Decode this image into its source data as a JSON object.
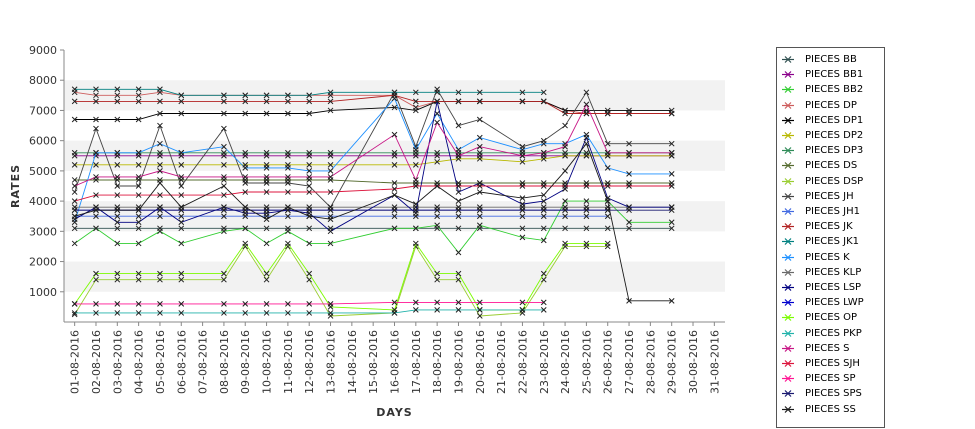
{
  "chart_data": {
    "type": "line",
    "xlabel": "DAYS",
    "ylabel": "RATES",
    "ylim": [
      0,
      9000
    ],
    "yticks": [
      1000,
      2000,
      3000,
      4000,
      5000,
      6000,
      7000,
      8000,
      9000
    ],
    "grid": "alternating horizontal bands",
    "legend_position": "right",
    "categories": [
      "01-08-2016",
      "02-08-2016",
      "03-08-2016",
      "04-08-2016",
      "05-08-2016",
      "06-08-2016",
      "07-08-2016",
      "08-08-2016",
      "09-08-2016",
      "10-08-2016",
      "11-08-2016",
      "12-08-2016",
      "13-08-2016",
      "14-08-2016",
      "15-08-2016",
      "16-08-2016",
      "17-08-2016",
      "18-08-2016",
      "19-08-2016",
      "20-08-2016",
      "21-08-2016",
      "22-08-2016",
      "23-08-2016",
      "24-08-2016",
      "25-08-2016",
      "26-08-2016",
      "27-08-2016",
      "28-08-2016",
      "29-08-2016",
      "30-08-2016",
      "31-08-2016"
    ],
    "series": [
      {
        "name": "PIECES BB",
        "color": "#2f4f4f",
        "values": [
          3100,
          3100,
          3100,
          3100,
          3100,
          3100,
          null,
          3100,
          3100,
          3100,
          3100,
          3100,
          3100,
          null,
          null,
          3100,
          3100,
          3100,
          3100,
          3100,
          null,
          3100,
          3100,
          3100,
          3100,
          3100,
          3100,
          null,
          3100,
          null,
          null
        ]
      },
      {
        "name": "PIECES BB1",
        "color": "#8b008b",
        "values": [
          5500,
          5500,
          5500,
          5500,
          5500,
          5500,
          null,
          5500,
          5500,
          5500,
          5500,
          5500,
          5500,
          null,
          null,
          5500,
          5500,
          5500,
          5500,
          5500,
          null,
          5500,
          5500,
          5500,
          5500,
          5500,
          5500,
          null,
          5500,
          null,
          null
        ]
      },
      {
        "name": "PIECES BB2",
        "color": "#32cd32",
        "values": [
          2600,
          3100,
          2600,
          2600,
          3000,
          2600,
          null,
          3000,
          3100,
          2600,
          3000,
          2600,
          2600,
          null,
          null,
          3100,
          3100,
          3200,
          2300,
          3200,
          null,
          2800,
          2700,
          4000,
          4000,
          4000,
          3300,
          null,
          3300,
          null,
          null
        ]
      },
      {
        "name": "PIECES DP",
        "color": "#cd5c5c",
        "values": [
          7600,
          7500,
          7500,
          7500,
          7600,
          7500,
          null,
          7500,
          7500,
          7500,
          7500,
          7500,
          7500,
          null,
          null,
          7500,
          7100,
          7300,
          7300,
          7300,
          null,
          7300,
          7300,
          7000,
          6900,
          6900,
          6900,
          null,
          6900,
          null,
          null
        ]
      },
      {
        "name": "PIECES DP1",
        "color": "#000000",
        "values": [
          6700,
          6700,
          6700,
          6700,
          6900,
          6900,
          null,
          6900,
          6900,
          6900,
          6900,
          6900,
          7000,
          null,
          null,
          7100,
          7000,
          7300,
          7300,
          7300,
          null,
          7300,
          7300,
          7000,
          7000,
          7000,
          7000,
          null,
          7000,
          null,
          null
        ]
      },
      {
        "name": "PIECES DP2",
        "color": "#b8b800",
        "values": [
          5200,
          5200,
          5200,
          5200,
          5200,
          5200,
          null,
          5200,
          5200,
          5200,
          5200,
          5200,
          5200,
          null,
          null,
          5200,
          5200,
          5300,
          5400,
          5400,
          null,
          5300,
          5400,
          5500,
          5500,
          5500,
          5500,
          null,
          5500,
          null,
          null
        ]
      },
      {
        "name": "PIECES DP3",
        "color": "#2e8b57",
        "values": [
          5600,
          5600,
          5600,
          5600,
          5600,
          5600,
          null,
          5600,
          5600,
          5600,
          5600,
          5600,
          5600,
          null,
          null,
          5600,
          5600,
          5600,
          5600,
          5600,
          null,
          5600,
          5600,
          5600,
          5600,
          5600,
          5600,
          null,
          5600,
          null,
          null
        ]
      },
      {
        "name": "PIECES DS",
        "color": "#556b2f",
        "values": [
          4700,
          4700,
          4700,
          4700,
          4700,
          4700,
          null,
          4700,
          4700,
          4700,
          4700,
          4700,
          4700,
          null,
          null,
          4600,
          4600,
          4600,
          4600,
          4600,
          null,
          4600,
          4600,
          4600,
          4600,
          4600,
          4600,
          null,
          4600,
          null,
          null
        ]
      },
      {
        "name": "PIECES DSP",
        "color": "#9acd32",
        "values": [
          250,
          1400,
          1400,
          1400,
          1400,
          1400,
          null,
          1400,
          2500,
          1400,
          2500,
          1400,
          200,
          null,
          null,
          300,
          2500,
          1400,
          1400,
          200,
          null,
          300,
          1400,
          2500,
          2500,
          2500,
          null,
          null,
          null,
          null,
          null
        ]
      },
      {
        "name": "PIECES JH",
        "color": "#444444",
        "values": [
          4300,
          6400,
          4500,
          4500,
          6500,
          4500,
          null,
          6400,
          4600,
          4600,
          4600,
          4500,
          3800,
          null,
          null,
          7600,
          5800,
          7700,
          6500,
          6700,
          null,
          5800,
          6000,
          6500,
          7600,
          5900,
          5900,
          null,
          5900,
          null,
          null
        ]
      },
      {
        "name": "PIECES JH1",
        "color": "#4169e1",
        "values": [
          3500,
          3500,
          3500,
          3500,
          3500,
          3500,
          null,
          3500,
          3500,
          3500,
          3500,
          3500,
          3500,
          null,
          null,
          3500,
          3500,
          3500,
          3500,
          3500,
          null,
          3500,
          3500,
          3500,
          3500,
          3500,
          null,
          null,
          null,
          null,
          null
        ]
      },
      {
        "name": "PIECES JK",
        "color": "#b22222",
        "values": [
          7300,
          7300,
          7300,
          7300,
          7300,
          7300,
          null,
          7300,
          7300,
          7300,
          7300,
          7300,
          7300,
          null,
          null,
          7500,
          7300,
          7300,
          7300,
          7300,
          null,
          7300,
          7300,
          6900,
          6900,
          6900,
          6900,
          null,
          6900,
          null,
          null
        ]
      },
      {
        "name": "PIECES JK1",
        "color": "#008080",
        "values": [
          7700,
          7700,
          7700,
          7700,
          7700,
          7500,
          null,
          7500,
          7500,
          7500,
          7500,
          7500,
          7600,
          null,
          null,
          7600,
          7600,
          7600,
          7600,
          7600,
          null,
          7600,
          7600,
          null,
          null,
          null,
          null,
          null,
          null,
          null,
          null
        ]
      },
      {
        "name": "PIECES K",
        "color": "#1e90ff",
        "values": [
          3300,
          5600,
          5600,
          5600,
          5900,
          5600,
          null,
          5800,
          5100,
          5100,
          5100,
          5000,
          5000,
          null,
          null,
          7400,
          5700,
          6900,
          5700,
          6100,
          null,
          5700,
          5900,
          5900,
          6200,
          5100,
          4900,
          null,
          4900,
          null,
          null
        ]
      },
      {
        "name": "PIECES KLP",
        "color": "#696969",
        "values": [
          3800,
          3800,
          3800,
          3800,
          3800,
          3800,
          null,
          3800,
          3800,
          3800,
          3800,
          3800,
          3800,
          null,
          null,
          3800,
          3800,
          3800,
          3800,
          3800,
          null,
          3800,
          3800,
          3800,
          3800,
          3800,
          3800,
          null,
          3800,
          null,
          null
        ]
      },
      {
        "name": "PIECES LSP",
        "color": "#000080",
        "values": [
          3400,
          3800,
          3300,
          3300,
          3800,
          3300,
          null,
          3800,
          3600,
          3600,
          3700,
          3600,
          3000,
          null,
          null,
          4200,
          3600,
          7300,
          4300,
          4600,
          null,
          3900,
          4000,
          4400,
          6100,
          4100,
          3800,
          null,
          3800,
          null,
          null
        ]
      },
      {
        "name": "PIECES LWP",
        "color": "#0000cd",
        "values": [
          3700,
          3700,
          3700,
          3700,
          3700,
          3700,
          null,
          3700,
          3700,
          3700,
          3700,
          3700,
          3700,
          null,
          null,
          3700,
          3700,
          3700,
          3700,
          3700,
          null,
          3700,
          3700,
          3700,
          3700,
          3700,
          null,
          null,
          null,
          null,
          null
        ]
      },
      {
        "name": "PIECES OP",
        "color": "#7cfc00",
        "values": [
          600,
          1600,
          1600,
          1600,
          1600,
          1600,
          null,
          1600,
          2600,
          1600,
          2600,
          1600,
          500,
          null,
          null,
          400,
          2600,
          1600,
          1600,
          400,
          null,
          400,
          1600,
          2600,
          2600,
          2600,
          null,
          null,
          null,
          null,
          null
        ]
      },
      {
        "name": "PIECES PKP",
        "color": "#20b2aa",
        "values": [
          300,
          300,
          300,
          300,
          300,
          300,
          null,
          300,
          300,
          300,
          300,
          300,
          300,
          null,
          null,
          300,
          400,
          400,
          400,
          400,
          null,
          400,
          400,
          null,
          null,
          null,
          null,
          null,
          null,
          null,
          null
        ]
      },
      {
        "name": "PIECES S",
        "color": "#c71585",
        "values": [
          4500,
          4800,
          4800,
          4800,
          5000,
          4800,
          null,
          4800,
          4800,
          4800,
          4800,
          4800,
          4800,
          null,
          null,
          6200,
          4700,
          6600,
          5500,
          5800,
          null,
          5500,
          5600,
          5800,
          7200,
          5600,
          5600,
          null,
          5600,
          null,
          null
        ]
      },
      {
        "name": "PIECES SJH",
        "color": "#dc143c",
        "values": [
          4000,
          4200,
          4200,
          4200,
          4200,
          4200,
          null,
          4200,
          4300,
          4300,
          4300,
          4300,
          4300,
          null,
          null,
          4400,
          4500,
          4500,
          4500,
          4500,
          null,
          4500,
          4500,
          4500,
          4500,
          4500,
          4500,
          null,
          4500,
          null,
          null
        ]
      },
      {
        "name": "PIECES SP",
        "color": "#ff1493",
        "values": [
          600,
          600,
          600,
          600,
          600,
          600,
          null,
          600,
          600,
          600,
          600,
          600,
          600,
          null,
          null,
          650,
          650,
          650,
          650,
          650,
          null,
          650,
          650,
          null,
          null,
          null,
          null,
          null,
          null,
          null,
          null
        ]
      },
      {
        "name": "PIECES SPS",
        "color": "#191970",
        "values": [
          3700,
          3700,
          3700,
          3700,
          3700,
          3700,
          null,
          3700,
          3700,
          3700,
          3700,
          3700,
          3700,
          null,
          null,
          3700,
          3700,
          3700,
          3700,
          3700,
          null,
          3700,
          3700,
          3700,
          3700,
          3700,
          3700,
          null,
          3700,
          null,
          null
        ]
      },
      {
        "name": "PIECES SS",
        "color": "#1a1a1a",
        "values": [
          3500,
          3700,
          3700,
          3700,
          4600,
          3800,
          null,
          4500,
          3800,
          3400,
          3800,
          3500,
          3400,
          null,
          null,
          4200,
          3900,
          4500,
          4000,
          4300,
          null,
          4100,
          4200,
          5000,
          5900,
          4000,
          700,
          null,
          700,
          null,
          null
        ]
      }
    ]
  }
}
